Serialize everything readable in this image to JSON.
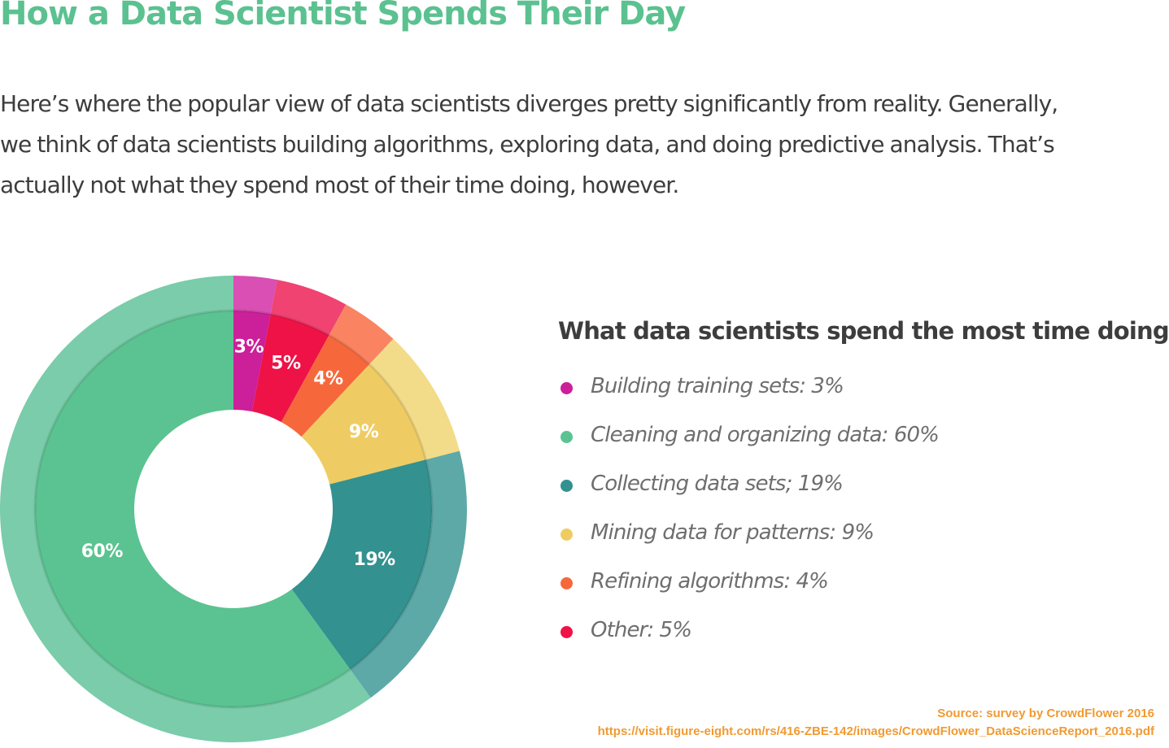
{
  "title": "How a Data Scientist Spends Their Day",
  "intro_lines": [
    "Here’s where the popular view of data scientists diverges pretty significantly from reality. Generally,",
    "we think of data scientists building algorithms, exploring data, and doing predictive analysis. That’s",
    "actually not what they spend most of their time doing, however."
  ],
  "chart_data": {
    "type": "pie",
    "style": "donut",
    "title": "What data scientists spend the most time doing",
    "series": [
      {
        "name": "Building training sets",
        "value": 3,
        "value_label": "3%",
        "legend": "Building training sets: 3%",
        "color": "#cc1f9a",
        "outer_color": "#d94fb3"
      },
      {
        "name": "Other",
        "value": 5,
        "value_label": "5%",
        "legend": "Other: 5%",
        "color": "#ee1247",
        "outer_color": "#f04372"
      },
      {
        "name": "Refining algorithms",
        "value": 4,
        "value_label": "4%",
        "legend": "Refining algorithms: 4%",
        "color": "#f6683b",
        "outer_color": "#fa8462"
      },
      {
        "name": "Mining data for patterns",
        "value": 9,
        "value_label": "9%",
        "legend": "Mining data for patterns: 9%",
        "color": "#efcc63",
        "outer_color": "#f2dc89"
      },
      {
        "name": "Collecting data sets",
        "value": 19,
        "value_label": "19%",
        "legend": "Collecting data sets; 19%",
        "color": "#33918f",
        "outer_color": "#5da9a8"
      },
      {
        "name": "Cleaning and organizing data",
        "value": 60,
        "value_label": "60%",
        "legend": "Cleaning and organizing data: 60%",
        "color": "#5ac391",
        "outer_color": "#7accaa"
      }
    ],
    "legend_order": [
      "Building training sets",
      "Cleaning and organizing data",
      "Collecting data sets",
      "Mining data for patterns",
      "Refining algorithms",
      "Other"
    ],
    "legend_position": "right"
  },
  "source": {
    "line1": "Source: survey by CrowdFlower 2016",
    "line2": "https://visit.figure-eight.com/rs/416-ZBE-142/images/CrowdFlower_DataScienceReport_2016.pdf"
  }
}
